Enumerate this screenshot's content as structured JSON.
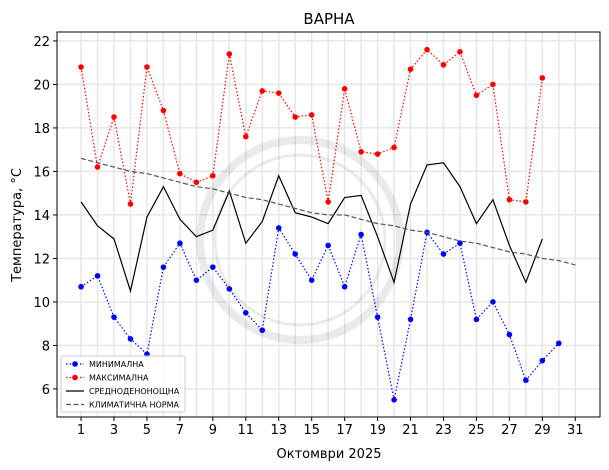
{
  "chart_data": {
    "type": "line",
    "title": "ВАРНА",
    "xlabel": "Октомври  2025",
    "ylabel": "Температура,  °C",
    "xlim": [
      -0.46,
      32.5
    ],
    "ylim": [
      4.71,
      22.41
    ],
    "xticks": [
      1,
      3,
      5,
      7,
      9,
      11,
      13,
      15,
      17,
      19,
      21,
      23,
      25,
      27,
      29,
      31
    ],
    "yticks": [
      6,
      8,
      10,
      12,
      14,
      16,
      18,
      20,
      22
    ],
    "grid": true,
    "legend": "bottom-left",
    "series": [
      {
        "name": "МИНИМАЛНА",
        "color": "#0000ff",
        "style": "dotted-marker",
        "x": [
          1,
          2,
          3,
          4,
          5,
          6,
          7,
          8,
          9,
          10,
          11,
          12,
          13,
          14,
          15,
          16,
          17,
          18,
          19,
          20,
          21,
          22,
          23,
          24,
          25,
          26,
          27,
          28,
          29,
          30
        ],
        "values": [
          10.7,
          11.2,
          9.3,
          8.3,
          7.6,
          11.6,
          12.7,
          11.0,
          11.6,
          10.6,
          9.5,
          8.7,
          13.4,
          12.2,
          11.0,
          12.6,
          10.7,
          13.1,
          9.3,
          5.5,
          9.2,
          13.2,
          12.2,
          12.7,
          9.2,
          10.0,
          8.5,
          6.4,
          7.3,
          8.1
        ]
      },
      {
        "name": "МАКСИМАЛНА",
        "color": "#ff0000",
        "style": "dotted-marker",
        "x": [
          1,
          2,
          3,
          4,
          5,
          6,
          7,
          8,
          9,
          10,
          11,
          12,
          13,
          14,
          15,
          16,
          17,
          18,
          19,
          20,
          21,
          22,
          23,
          24,
          25,
          26,
          27,
          28,
          29
        ],
        "values": [
          20.8,
          16.2,
          18.5,
          14.5,
          20.8,
          18.8,
          15.9,
          15.5,
          15.8,
          21.4,
          17.6,
          19.7,
          19.6,
          18.5,
          18.6,
          14.6,
          19.8,
          16.9,
          16.8,
          17.1,
          20.7,
          21.6,
          20.9,
          21.5,
          19.5,
          20.0,
          14.7,
          14.6,
          20.3
        ]
      },
      {
        "name": "СРЕДНОДЕНОНОЩНА",
        "color": "#000000",
        "style": "solid",
        "x": [
          1,
          2,
          3,
          4,
          5,
          6,
          7,
          8,
          9,
          10,
          11,
          12,
          13,
          14,
          15,
          16,
          17,
          18,
          19,
          20,
          21,
          22,
          23,
          24,
          25,
          26,
          27,
          28,
          29
        ],
        "values": [
          14.6,
          13.5,
          12.9,
          10.5,
          13.9,
          15.3,
          13.8,
          13.0,
          13.3,
          15.1,
          12.7,
          13.7,
          15.8,
          14.1,
          13.9,
          13.6,
          14.8,
          14.9,
          13.0,
          10.9,
          14.5,
          16.3,
          16.4,
          15.3,
          13.6,
          14.7,
          12.6,
          10.9,
          12.9
        ]
      },
      {
        "name": "КЛИМАТИЧНА НОРМА",
        "color": "#555555",
        "style": "dashed",
        "x": [
          1,
          2,
          3,
          4,
          5,
          6,
          7,
          8,
          9,
          10,
          11,
          12,
          13,
          14,
          15,
          16,
          17,
          18,
          19,
          20,
          21,
          22,
          23,
          24,
          25,
          26,
          27,
          28,
          29,
          30,
          31
        ],
        "values": [
          16.6,
          16.4,
          16.2,
          16.0,
          15.9,
          15.7,
          15.5,
          15.3,
          15.2,
          15.0,
          14.8,
          14.7,
          14.5,
          14.3,
          14.1,
          14.0,
          14.0,
          13.8,
          13.6,
          13.5,
          13.3,
          13.2,
          13.0,
          12.8,
          12.7,
          12.5,
          12.3,
          12.2,
          12.0,
          11.9,
          11.7
        ]
      }
    ]
  }
}
